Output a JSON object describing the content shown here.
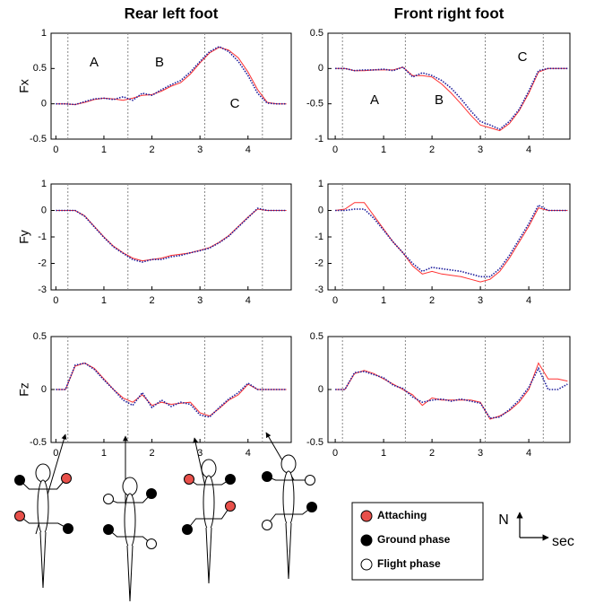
{
  "chart_data": [
    {
      "type": "line",
      "title": "Rear left foot",
      "ylabel": "Fx",
      "annotations": [
        "A",
        "B",
        "C"
      ],
      "x": [
        0,
        0.2,
        0.4,
        0.6,
        0.8,
        1,
        1.2,
        1.4,
        1.6,
        1.8,
        2,
        2.2,
        2.4,
        2.6,
        2.8,
        3,
        3.2,
        3.4,
        3.6,
        3.8,
        4,
        4.2,
        4.4,
        4.6,
        4.8
      ],
      "series": [
        {
          "color": "#ff3030",
          "style": "solid",
          "values": [
            0,
            0,
            -0.01,
            0.02,
            0.06,
            0.08,
            0.07,
            0.05,
            0.08,
            0.12,
            0.13,
            0.18,
            0.25,
            0.3,
            0.42,
            0.58,
            0.72,
            0.8,
            0.76,
            0.65,
            0.45,
            0.2,
            0.02,
            0,
            0
          ]
        },
        {
          "color": "#1c1c9c",
          "style": "dotted",
          "values": [
            0,
            0,
            -0.01,
            0.03,
            0.07,
            0.08,
            0.06,
            0.1,
            0.05,
            0.15,
            0.12,
            0.2,
            0.27,
            0.33,
            0.45,
            0.6,
            0.74,
            0.81,
            0.74,
            0.6,
            0.4,
            0.15,
            0.01,
            0,
            0
          ]
        }
      ],
      "events": [
        0.25,
        1.5,
        3.1,
        4.3
      ],
      "xlim": [
        -0.1,
        4.9
      ],
      "xticks": [
        0,
        1,
        2,
        3,
        4
      ],
      "ylim": [
        -0.5,
        1
      ],
      "yticks": [
        -0.5,
        0,
        0.5,
        1
      ]
    },
    {
      "type": "line",
      "title": "Front right foot",
      "annotations": [
        "A",
        "B",
        "C"
      ],
      "x": [
        0,
        0.2,
        0.4,
        0.6,
        0.8,
        1,
        1.2,
        1.4,
        1.6,
        1.8,
        2,
        2.2,
        2.4,
        2.6,
        2.8,
        3,
        3.2,
        3.4,
        3.6,
        3.8,
        4,
        4.2,
        4.4,
        4.6,
        4.8
      ],
      "series": [
        {
          "color": "#ff3030",
          "style": "solid",
          "values": [
            0,
            0,
            -0.03,
            -0.03,
            -0.02,
            -0.02,
            -0.02,
            0.02,
            -0.1,
            -0.1,
            -0.12,
            -0.22,
            -0.35,
            -0.5,
            -0.66,
            -0.8,
            -0.84,
            -0.88,
            -0.78,
            -0.6,
            -0.35,
            -0.05,
            0,
            0,
            0
          ]
        },
        {
          "color": "#1c1c9c",
          "style": "dotted",
          "values": [
            0,
            0,
            -0.03,
            -0.02,
            -0.02,
            -0.01,
            -0.03,
            0.02,
            -0.12,
            -0.06,
            -0.1,
            -0.17,
            -0.28,
            -0.43,
            -0.6,
            -0.75,
            -0.8,
            -0.86,
            -0.75,
            -0.58,
            -0.32,
            -0.03,
            0,
            0,
            0
          ]
        }
      ],
      "events": [
        0.15,
        1.45,
        3.1,
        4.3
      ],
      "xlim": [
        -0.15,
        4.85
      ],
      "xticks": [
        0,
        1,
        2,
        3,
        4
      ],
      "ylim": [
        -1,
        0.5
      ],
      "yticks": [
        -1,
        -0.5,
        0,
        0.5
      ]
    },
    {
      "type": "line",
      "ylabel": "Fy",
      "x": [
        0,
        0.2,
        0.4,
        0.6,
        0.8,
        1,
        1.2,
        1.4,
        1.6,
        1.8,
        2,
        2.2,
        2.4,
        2.6,
        2.8,
        3,
        3.2,
        3.4,
        3.6,
        3.8,
        4,
        4.2,
        4.4,
        4.6,
        4.8
      ],
      "series": [
        {
          "color": "#ff3030",
          "style": "solid",
          "values": [
            0,
            0,
            0,
            -0.2,
            -0.6,
            -1,
            -1.35,
            -1.6,
            -1.8,
            -1.9,
            -1.85,
            -1.8,
            -1.7,
            -1.65,
            -1.6,
            -1.5,
            -1.4,
            -1.2,
            -0.95,
            -0.6,
            -0.25,
            0.05,
            0,
            0,
            0
          ]
        },
        {
          "color": "#1c1c9c",
          "style": "dotted",
          "values": [
            0,
            0,
            0,
            -0.22,
            -0.62,
            -1.02,
            -1.38,
            -1.62,
            -1.85,
            -1.95,
            -1.85,
            -1.85,
            -1.75,
            -1.7,
            -1.6,
            -1.52,
            -1.42,
            -1.22,
            -0.97,
            -0.62,
            -0.27,
            0.08,
            0,
            0,
            0
          ]
        }
      ],
      "events": [
        0.25,
        1.5,
        3.1,
        4.3
      ],
      "xlim": [
        -0.1,
        4.9
      ],
      "xticks": [
        0,
        1,
        2,
        3,
        4
      ],
      "ylim": [
        -3,
        1
      ],
      "yticks": [
        -3,
        -2,
        -1,
        0,
        1
      ]
    },
    {
      "type": "line",
      "x": [
        0,
        0.2,
        0.4,
        0.6,
        0.8,
        1,
        1.2,
        1.4,
        1.6,
        1.8,
        2,
        2.2,
        2.4,
        2.6,
        2.8,
        3,
        3.2,
        3.4,
        3.6,
        3.8,
        4,
        4.2,
        4.4,
        4.6,
        4.8
      ],
      "series": [
        {
          "color": "#ff3030",
          "style": "solid",
          "values": [
            0,
            0.05,
            0.3,
            0.3,
            -0.2,
            -0.7,
            -1.2,
            -1.6,
            -2.1,
            -2.4,
            -2.3,
            -2.4,
            -2.45,
            -2.5,
            -2.6,
            -2.7,
            -2.6,
            -2.3,
            -1.8,
            -1.2,
            -0.6,
            0.1,
            0,
            0,
            0
          ]
        },
        {
          "color": "#1c1c9c",
          "style": "dotted",
          "values": [
            0,
            0,
            0.05,
            0.05,
            -0.3,
            -0.75,
            -1.2,
            -1.6,
            -2,
            -2.3,
            -2.15,
            -2.2,
            -2.25,
            -2.3,
            -2.4,
            -2.5,
            -2.5,
            -2.2,
            -1.7,
            -1.1,
            -0.5,
            0.2,
            0,
            0,
            0
          ]
        }
      ],
      "events": [
        0.15,
        1.45,
        3.1,
        4.3
      ],
      "xlim": [
        -0.15,
        4.85
      ],
      "xticks": [
        0,
        1,
        2,
        3,
        4
      ],
      "ylim": [
        -3,
        1
      ],
      "yticks": [
        -3,
        -2,
        -1,
        0,
        1
      ]
    },
    {
      "type": "line",
      "ylabel": "Fz",
      "x": [
        0,
        0.2,
        0.4,
        0.6,
        0.8,
        1,
        1.2,
        1.4,
        1.6,
        1.8,
        2,
        2.2,
        2.4,
        2.6,
        2.8,
        3,
        3.2,
        3.4,
        3.6,
        3.8,
        4,
        4.2,
        4.4,
        4.6,
        4.8
      ],
      "series": [
        {
          "color": "#ff3030",
          "style": "solid",
          "values": [
            0,
            0,
            0.22,
            0.25,
            0.2,
            0.1,
            0,
            -0.08,
            -0.12,
            -0.05,
            -0.15,
            -0.12,
            -0.14,
            -0.13,
            -0.12,
            -0.22,
            -0.25,
            -0.18,
            -0.1,
            -0.05,
            0.05,
            0,
            0,
            0,
            0
          ]
        },
        {
          "color": "#1c1c9c",
          "style": "dotted",
          "values": [
            0,
            0,
            0.23,
            0.25,
            0.19,
            0.09,
            0,
            -0.1,
            -0.15,
            -0.03,
            -0.17,
            -0.1,
            -0.16,
            -0.12,
            -0.14,
            -0.24,
            -0.26,
            -0.17,
            -0.09,
            -0.03,
            0.06,
            0,
            0,
            0,
            0
          ]
        }
      ],
      "events": [
        0.25,
        1.5,
        3.1,
        4.3
      ],
      "xlim": [
        -0.1,
        4.9
      ],
      "xticks": [
        0,
        1,
        2,
        3,
        4
      ],
      "ylim": [
        -0.5,
        0.5
      ],
      "yticks": [
        -0.5,
        0,
        0.5
      ]
    },
    {
      "type": "line",
      "x": [
        0,
        0.2,
        0.4,
        0.6,
        0.8,
        1,
        1.2,
        1.4,
        1.6,
        1.8,
        2,
        2.2,
        2.4,
        2.6,
        2.8,
        3,
        3.2,
        3.4,
        3.6,
        3.8,
        4,
        4.2,
        4.4,
        4.6,
        4.8
      ],
      "series": [
        {
          "color": "#ff3030",
          "style": "solid",
          "values": [
            0,
            0,
            0.15,
            0.18,
            0.15,
            0.1,
            0.05,
            0,
            -0.05,
            -0.15,
            -0.08,
            -0.1,
            -0.1,
            -0.1,
            -0.1,
            -0.12,
            -0.28,
            -0.25,
            -0.2,
            -0.12,
            0,
            0.25,
            0.1,
            0.1,
            0.08
          ]
        },
        {
          "color": "#1c1c9c",
          "style": "dotted",
          "values": [
            0,
            0,
            0.16,
            0.17,
            0.14,
            0.11,
            0.04,
            0.01,
            -0.07,
            -0.12,
            -0.1,
            -0.09,
            -0.11,
            -0.09,
            -0.11,
            -0.13,
            -0.27,
            -0.26,
            -0.19,
            -0.1,
            0.02,
            0.2,
            0,
            0,
            0.05
          ]
        }
      ],
      "events": [
        0.15,
        1.45,
        3.1,
        4.3
      ],
      "xlim": [
        -0.15,
        4.85
      ],
      "xticks": [
        0,
        1,
        2,
        3,
        4
      ],
      "ylim": [
        -0.5,
        0.5
      ],
      "yticks": [
        -0.5,
        0,
        0.5
      ]
    }
  ],
  "legend": {
    "items": [
      {
        "label": "Attaching",
        "color": "#e8504a"
      },
      {
        "label": "Ground phase",
        "color": "#000000"
      },
      {
        "label": "Flight phase",
        "color": "#ffffff"
      }
    ]
  },
  "axis_key": {
    "y": "N",
    "x": "sec"
  }
}
